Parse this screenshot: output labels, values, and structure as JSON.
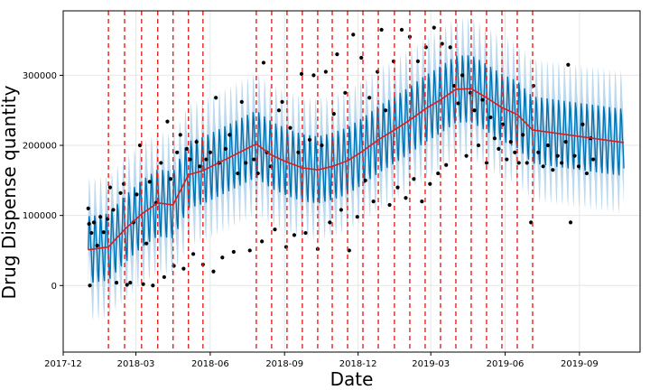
{
  "chart_data": {
    "type": "line",
    "title": "",
    "xlabel": "Date",
    "ylabel": "Drug Dispense quantity",
    "grid": true,
    "legend": "none",
    "xlim": [
      "2017-12-01",
      "2019-11-15"
    ],
    "ylim": [
      -95000,
      392000
    ],
    "x_ticks": [
      {
        "date": "2017-12-01",
        "label": "2017-12"
      },
      {
        "date": "2018-03-01",
        "label": "2018-03"
      },
      {
        "date": "2018-06-01",
        "label": "2018-06"
      },
      {
        "date": "2018-09-01",
        "label": "2018-09"
      },
      {
        "date": "2018-12-01",
        "label": "2018-12"
      },
      {
        "date": "2019-03-01",
        "label": "2019-03"
      },
      {
        "date": "2019-06-01",
        "label": "2019-06"
      },
      {
        "date": "2019-09-01",
        "label": "2019-09"
      }
    ],
    "y_ticks": [
      {
        "value": 0,
        "label": "0"
      },
      {
        "value": 100000,
        "label": "100000"
      },
      {
        "value": 200000,
        "label": "200000"
      },
      {
        "value": 300000,
        "label": "300000"
      }
    ],
    "colors": {
      "forecast": "#0072b2",
      "uncertainty": "#bcd9ee",
      "trend": "#dd1c1c",
      "changepoint": "#e8221e",
      "observed": "#000000",
      "grid": "#e6e6e6"
    },
    "changepoints": [
      "2018-01-26",
      "2018-02-15",
      "2018-03-08",
      "2018-03-28",
      "2018-04-16",
      "2018-05-05",
      "2018-05-23",
      "2018-07-28",
      "2018-08-16",
      "2018-09-04",
      "2018-09-23",
      "2018-10-12",
      "2018-10-30",
      "2018-11-18",
      "2018-12-07",
      "2018-12-26",
      "2019-01-15",
      "2019-02-03",
      "2019-02-22",
      "2019-03-13",
      "2019-04-01",
      "2019-04-20",
      "2019-05-09",
      "2019-05-28",
      "2019-06-16",
      "2019-07-05"
    ],
    "trend": [
      {
        "x": "2018-01-01",
        "y": 51000
      },
      {
        "x": "2018-01-26",
        "y": 55000
      },
      {
        "x": "2018-02-15",
        "y": 80000
      },
      {
        "x": "2018-03-08",
        "y": 102000
      },
      {
        "x": "2018-03-28",
        "y": 118000
      },
      {
        "x": "2018-04-16",
        "y": 115000
      },
      {
        "x": "2018-05-05",
        "y": 158000
      },
      {
        "x": "2018-05-23",
        "y": 164000
      },
      {
        "x": "2018-06-20",
        "y": 180000
      },
      {
        "x": "2018-07-28",
        "y": 202000
      },
      {
        "x": "2018-08-16",
        "y": 186000
      },
      {
        "x": "2018-09-04",
        "y": 176000
      },
      {
        "x": "2018-09-23",
        "y": 168000
      },
      {
        "x": "2018-10-12",
        "y": 165000
      },
      {
        "x": "2018-10-30",
        "y": 170000
      },
      {
        "x": "2018-11-18",
        "y": 178000
      },
      {
        "x": "2018-12-07",
        "y": 192000
      },
      {
        "x": "2018-12-26",
        "y": 208000
      },
      {
        "x": "2019-01-15",
        "y": 222000
      },
      {
        "x": "2019-02-03",
        "y": 236000
      },
      {
        "x": "2019-02-22",
        "y": 252000
      },
      {
        "x": "2019-03-13",
        "y": 265000
      },
      {
        "x": "2019-04-01",
        "y": 280000
      },
      {
        "x": "2019-04-20",
        "y": 281000
      },
      {
        "x": "2019-05-09",
        "y": 268000
      },
      {
        "x": "2019-05-28",
        "y": 254000
      },
      {
        "x": "2019-06-16",
        "y": 244000
      },
      {
        "x": "2019-07-05",
        "y": 222000
      },
      {
        "x": "2019-10-26",
        "y": 204000
      }
    ],
    "forecast_range": {
      "start": "2018-01-01",
      "end": "2019-10-26",
      "band_half_width": 55000,
      "weekly_amplitude": 55000
    },
    "observed": [
      {
        "x": "2018-01-01",
        "y": 110000
      },
      {
        "x": "2018-01-02",
        "y": 88000
      },
      {
        "x": "2018-01-03",
        "y": 0
      },
      {
        "x": "2018-01-05",
        "y": 75000
      },
      {
        "x": "2018-01-08",
        "y": 90000
      },
      {
        "x": "2018-01-12",
        "y": 57000
      },
      {
        "x": "2018-01-16",
        "y": 98000
      },
      {
        "x": "2018-01-20",
        "y": 76000
      },
      {
        "x": "2018-01-25",
        "y": 95000
      },
      {
        "x": "2018-01-28",
        "y": 140000
      },
      {
        "x": "2018-02-01",
        "y": 108000
      },
      {
        "x": "2018-02-05",
        "y": 4000
      },
      {
        "x": "2018-02-10",
        "y": 132000
      },
      {
        "x": "2018-02-14",
        "y": 145000
      },
      {
        "x": "2018-02-18",
        "y": 1000
      },
      {
        "x": "2018-02-22",
        "y": 4000
      },
      {
        "x": "2018-02-26",
        "y": 90000
      },
      {
        "x": "2018-03-02",
        "y": 130000
      },
      {
        "x": "2018-03-06",
        "y": 200000
      },
      {
        "x": "2018-03-10",
        "y": 2000
      },
      {
        "x": "2018-03-14",
        "y": 60000
      },
      {
        "x": "2018-03-18",
        "y": 148000
      },
      {
        "x": "2018-03-22",
        "y": 0
      },
      {
        "x": "2018-03-26",
        "y": 118000
      },
      {
        "x": "2018-04-01",
        "y": 175000
      },
      {
        "x": "2018-04-05",
        "y": 12000
      },
      {
        "x": "2018-04-09",
        "y": 234000
      },
      {
        "x": "2018-04-13",
        "y": 152000
      },
      {
        "x": "2018-04-17",
        "y": 28000
      },
      {
        "x": "2018-04-21",
        "y": 190000
      },
      {
        "x": "2018-04-25",
        "y": 215000
      },
      {
        "x": "2018-04-29",
        "y": 24000
      },
      {
        "x": "2018-05-03",
        "y": 195000
      },
      {
        "x": "2018-05-07",
        "y": 180000
      },
      {
        "x": "2018-05-11",
        "y": 45000
      },
      {
        "x": "2018-05-15",
        "y": 205000
      },
      {
        "x": "2018-05-19",
        "y": 170000
      },
      {
        "x": "2018-05-23",
        "y": 30000
      },
      {
        "x": "2018-05-27",
        "y": 180000
      },
      {
        "x": "2018-06-01",
        "y": 190000
      },
      {
        "x": "2018-06-05",
        "y": 20000
      },
      {
        "x": "2018-06-08",
        "y": 268000
      },
      {
        "x": "2018-06-12",
        "y": 175000
      },
      {
        "x": "2018-06-16",
        "y": 40000
      },
      {
        "x": "2018-06-20",
        "y": 195000
      },
      {
        "x": "2018-06-25",
        "y": 215000
      },
      {
        "x": "2018-06-30",
        "y": 48000
      },
      {
        "x": "2018-07-05",
        "y": 160000
      },
      {
        "x": "2018-07-10",
        "y": 262000
      },
      {
        "x": "2018-07-15",
        "y": 175000
      },
      {
        "x": "2018-07-20",
        "y": 50000
      },
      {
        "x": "2018-07-25",
        "y": 180000
      },
      {
        "x": "2018-07-30",
        "y": 160000
      },
      {
        "x": "2018-08-04",
        "y": 63000
      },
      {
        "x": "2018-08-06",
        "y": 318000
      },
      {
        "x": "2018-08-10",
        "y": 190000
      },
      {
        "x": "2018-08-15",
        "y": 170000
      },
      {
        "x": "2018-08-20",
        "y": 80000
      },
      {
        "x": "2018-08-25",
        "y": 250000
      },
      {
        "x": "2018-08-29",
        "y": 262000
      },
      {
        "x": "2018-09-03",
        "y": 55000
      },
      {
        "x": "2018-09-08",
        "y": 225000
      },
      {
        "x": "2018-09-13",
        "y": 72000
      },
      {
        "x": "2018-09-18",
        "y": 190000
      },
      {
        "x": "2018-09-22",
        "y": 302000
      },
      {
        "x": "2018-09-27",
        "y": 75000
      },
      {
        "x": "2018-10-02",
        "y": 208000
      },
      {
        "x": "2018-10-07",
        "y": 300000
      },
      {
        "x": "2018-10-12",
        "y": 52000
      },
      {
        "x": "2018-10-17",
        "y": 200000
      },
      {
        "x": "2018-10-22",
        "y": 305000
      },
      {
        "x": "2018-10-27",
        "y": 90000
      },
      {
        "x": "2018-11-01",
        "y": 245000
      },
      {
        "x": "2018-11-05",
        "y": 330000
      },
      {
        "x": "2018-11-10",
        "y": 108000
      },
      {
        "x": "2018-11-15",
        "y": 275000
      },
      {
        "x": "2018-11-20",
        "y": 50000
      },
      {
        "x": "2018-11-25",
        "y": 358000
      },
      {
        "x": "2018-11-30",
        "y": 98000
      },
      {
        "x": "2018-12-05",
        "y": 325000
      },
      {
        "x": "2018-12-10",
        "y": 150000
      },
      {
        "x": "2018-12-15",
        "y": 268000
      },
      {
        "x": "2018-12-20",
        "y": 120000
      },
      {
        "x": "2018-12-25",
        "y": 305000
      },
      {
        "x": "2018-12-30",
        "y": 365000
      },
      {
        "x": "2019-01-04",
        "y": 250000
      },
      {
        "x": "2019-01-09",
        "y": 115000
      },
      {
        "x": "2019-01-14",
        "y": 320000
      },
      {
        "x": "2019-01-19",
        "y": 140000
      },
      {
        "x": "2019-01-24",
        "y": 365000
      },
      {
        "x": "2019-01-29",
        "y": 125000
      },
      {
        "x": "2019-02-03",
        "y": 355000
      },
      {
        "x": "2019-02-08",
        "y": 152000
      },
      {
        "x": "2019-02-13",
        "y": 320000
      },
      {
        "x": "2019-02-18",
        "y": 120000
      },
      {
        "x": "2019-02-23",
        "y": 340000
      },
      {
        "x": "2019-02-28",
        "y": 145000
      },
      {
        "x": "2019-03-05",
        "y": 368000
      },
      {
        "x": "2019-03-10",
        "y": 160000
      },
      {
        "x": "2019-03-15",
        "y": 345000
      },
      {
        "x": "2019-03-20",
        "y": 172000
      },
      {
        "x": "2019-03-25",
        "y": 340000
      },
      {
        "x": "2019-03-30",
        "y": 285000
      },
      {
        "x": "2019-04-04",
        "y": 260000
      },
      {
        "x": "2019-04-09",
        "y": 300000
      },
      {
        "x": "2019-04-14",
        "y": 185000
      },
      {
        "x": "2019-04-19",
        "y": 275000
      },
      {
        "x": "2019-04-24",
        "y": 250000
      },
      {
        "x": "2019-04-29",
        "y": 200000
      },
      {
        "x": "2019-05-04",
        "y": 265000
      },
      {
        "x": "2019-05-09",
        "y": 175000
      },
      {
        "x": "2019-05-14",
        "y": 240000
      },
      {
        "x": "2019-05-19",
        "y": 210000
      },
      {
        "x": "2019-05-24",
        "y": 195000
      },
      {
        "x": "2019-05-29",
        "y": 230000
      },
      {
        "x": "2019-06-03",
        "y": 180000
      },
      {
        "x": "2019-06-08",
        "y": 205000
      },
      {
        "x": "2019-06-13",
        "y": 190000
      },
      {
        "x": "2019-06-18",
        "y": 175000
      },
      {
        "x": "2019-06-23",
        "y": 215000
      },
      {
        "x": "2019-06-28",
        "y": 175000
      },
      {
        "x": "2019-07-03",
        "y": 90000
      },
      {
        "x": "2019-07-06",
        "y": 285000
      },
      {
        "x": "2019-07-12",
        "y": 190000
      },
      {
        "x": "2019-07-18",
        "y": 170000
      },
      {
        "x": "2019-07-24",
        "y": 200000
      },
      {
        "x": "2019-07-30",
        "y": 165000
      },
      {
        "x": "2019-08-05",
        "y": 185000
      },
      {
        "x": "2019-08-10",
        "y": 175000
      },
      {
        "x": "2019-08-15",
        "y": 205000
      },
      {
        "x": "2019-08-18",
        "y": 315000
      },
      {
        "x": "2019-08-21",
        "y": 90000
      },
      {
        "x": "2019-08-26",
        "y": 185000
      },
      {
        "x": "2019-08-31",
        "y": 170000
      },
      {
        "x": "2019-09-05",
        "y": 230000
      },
      {
        "x": "2019-09-10",
        "y": 160000
      },
      {
        "x": "2019-09-15",
        "y": 210000
      },
      {
        "x": "2019-09-18",
        "y": 180000
      }
    ]
  }
}
